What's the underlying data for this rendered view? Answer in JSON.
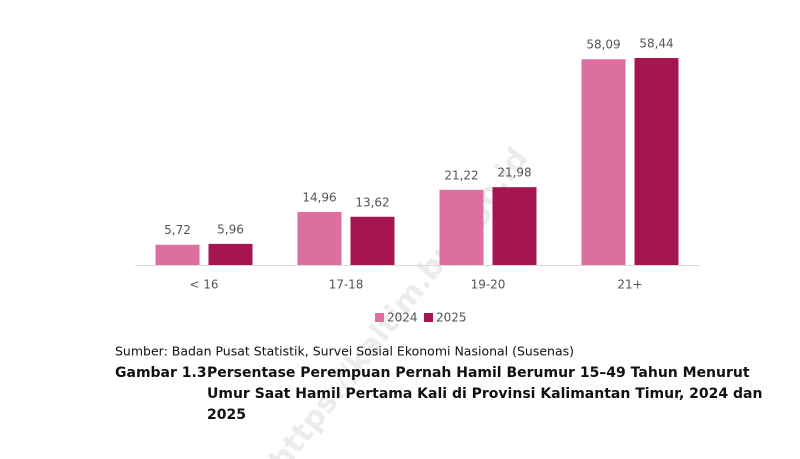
{
  "chart_data": {
    "type": "bar",
    "categories": [
      "< 16",
      "17-18",
      "19-20",
      "21+"
    ],
    "series": [
      {
        "name": "2024",
        "color": "#dc6fa0",
        "values": [
          5.72,
          14.96,
          21.22,
          58.09
        ],
        "value_labels": [
          "5,72",
          "14,96",
          "21,22",
          "58,09"
        ]
      },
      {
        "name": "2025",
        "color": "#a51651",
        "values": [
          5.96,
          13.62,
          21.98,
          58.44
        ],
        "value_labels": [
          "5,96",
          "13,62",
          "21,98",
          "58,44"
        ]
      }
    ],
    "legend": "bottom",
    "source": "Sumber: Badan Pusat Statistik, Survei Sosial Ekonomi Nasional (Susenas)",
    "figure_number": "Gambar 1.3",
    "caption_lines": [
      "Persentase Perempuan Pernah Hamil Berumur 15–49 Tahun Menurut",
      "Umur Saat Hamil Pertama Kali di Provinsi Kalimantan Timur, 2024 dan",
      "2025"
    ],
    "watermark": "https://kaltim.bps.go.id"
  }
}
